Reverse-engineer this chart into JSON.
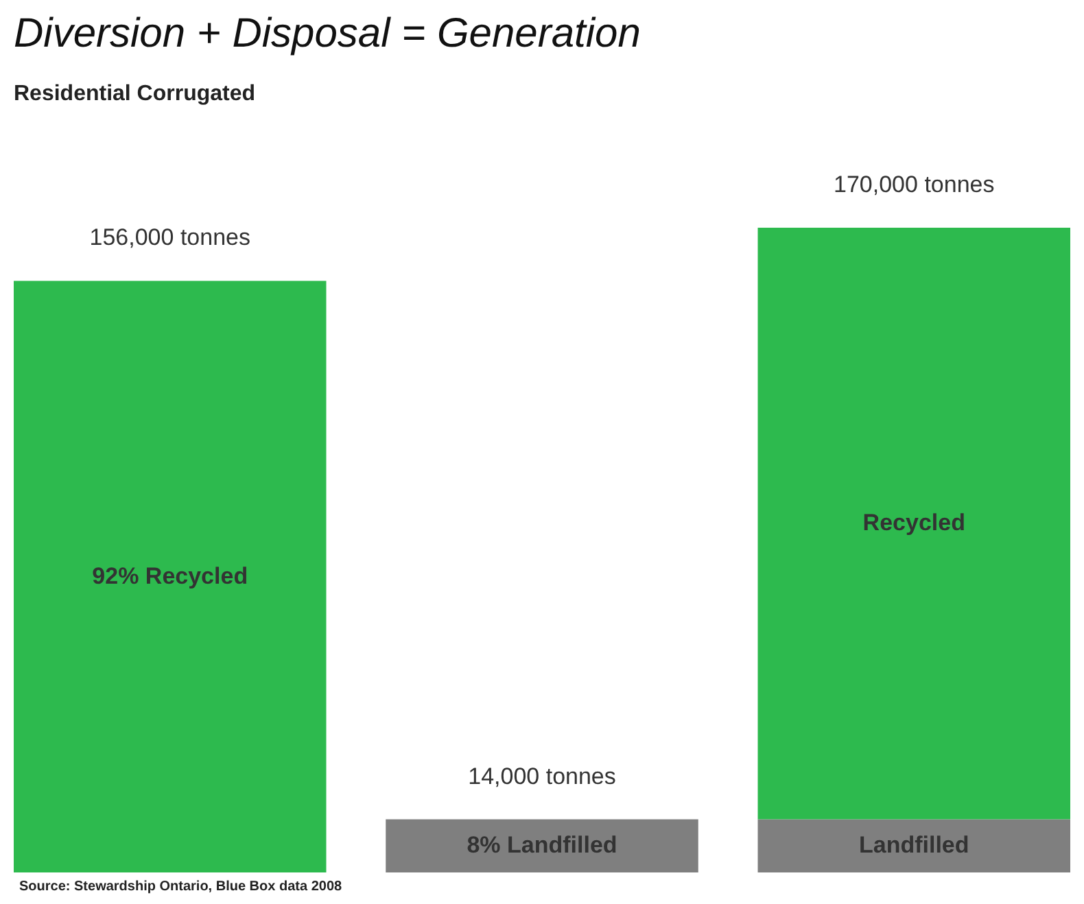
{
  "chart_data": {
    "type": "bar",
    "title": "Diversion + Disposal = Generation",
    "subtitle": "Residential Corrugated",
    "categories": [
      null,
      null,
      null
    ],
    "stacked": true,
    "series": [
      {
        "name": "Landfilled",
        "color": "#7f7f7f",
        "values": [
          null,
          14000,
          14000
        ],
        "value_labels": [
          null,
          "14,000 tonnes",
          null
        ]
      },
      {
        "name": "Recycled",
        "color": "#2dba4e",
        "values": [
          156000,
          null,
          156000
        ],
        "value_labels": [
          "156,000 tonnes",
          null,
          null
        ]
      }
    ],
    "totals": [
      null,
      null,
      "170,000 tonnes"
    ],
    "annotations": [
      "92% Recycled",
      "8% Landfilled",
      "Source: Stewardship Ontario, Blue Box data 2008"
    ]
  }
}
